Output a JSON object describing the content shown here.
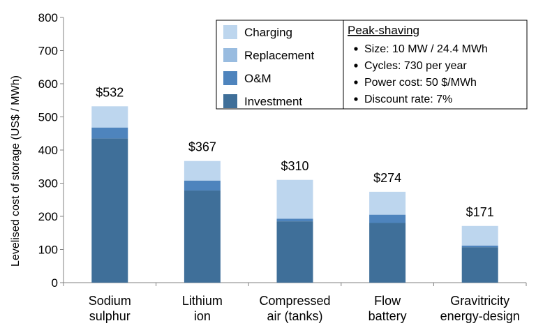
{
  "chart_data": {
    "type": "bar",
    "stacked": true,
    "ylabel": "Levelised cost of storage (US$ / MWh)",
    "ylim": [
      0,
      800
    ],
    "yticks": [
      0,
      100,
      200,
      300,
      400,
      500,
      600,
      700,
      800
    ],
    "grid": false,
    "legend_position": "top-center",
    "categories": [
      [
        "Sodium",
        "sulphur"
      ],
      [
        "Lithium",
        "ion"
      ],
      [
        "Compressed",
        "air (tanks)"
      ],
      [
        "Flow",
        "battery"
      ],
      [
        "Gravitricity",
        "energy-design"
      ]
    ],
    "series": [
      {
        "name": "Investment",
        "color": "#3F6F99",
        "values": [
          435,
          278,
          185,
          180,
          107
        ]
      },
      {
        "name": "O&M",
        "color": "#4E84BD",
        "values": [
          33,
          30,
          8,
          25,
          5
        ]
      },
      {
        "name": "Replacement",
        "color": "#99BCE0",
        "values": [
          0,
          0,
          0,
          0,
          0
        ]
      },
      {
        "name": "Charging",
        "color": "#BDD6EE",
        "values": [
          64,
          59,
          117,
          69,
          59
        ]
      }
    ],
    "totals": [
      "$532",
      "$367",
      "$310",
      "$274",
      "$171"
    ],
    "legend_order": [
      "Charging",
      "Replacement",
      "O&M",
      "Investment"
    ],
    "annotation": {
      "title": "Peak-shaving",
      "lines": [
        "Size: 10 MW / 24.4 MWh",
        "Cycles: 730 per year",
        "Power cost: 50 $/MWh",
        "Discount rate: 7%"
      ]
    }
  }
}
